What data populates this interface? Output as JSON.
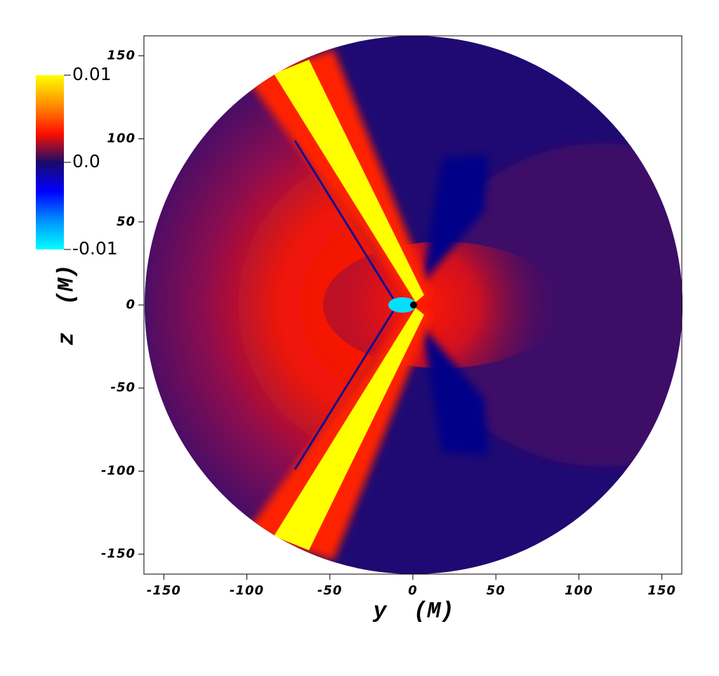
{
  "chart_data": {
    "type": "heatmap",
    "xlabel": "y  (M)",
    "ylabel": "z  (M)",
    "xlim": [
      -162,
      162
    ],
    "ylim": [
      -162,
      162
    ],
    "xticks": [
      -150,
      -100,
      -50,
      0,
      50,
      100,
      150
    ],
    "yticks": [
      -150,
      -100,
      -50,
      0,
      50,
      100,
      150
    ],
    "colorbar": {
      "lim": [
        -0.01,
        0.01
      ],
      "ticks": [
        -0.01,
        {
          "value": 0,
          "label": "0.0"
        },
        0.01
      ],
      "colors": [
        "#00ffff",
        "#0090ff",
        "#0000ff",
        "#1a0a6a",
        "#ff1000",
        "#ff9000",
        "#ffff00"
      ]
    }
  }
}
